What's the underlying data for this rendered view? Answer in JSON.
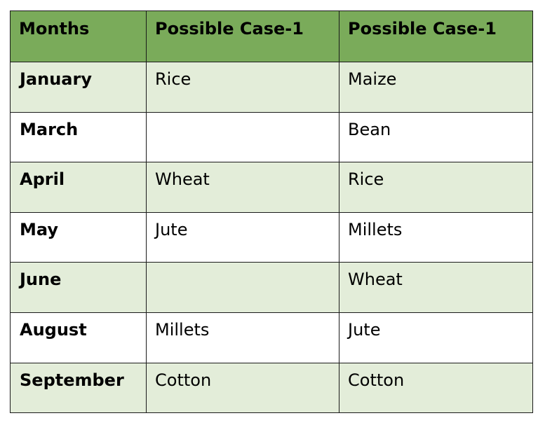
{
  "table": {
    "headers": [
      "Months",
      "Possible Case-1",
      "Possible Case-1"
    ],
    "rows": [
      {
        "month": "January",
        "case1": "Rice",
        "case2": "Maize"
      },
      {
        "month": "March",
        "case1": "",
        "case2": "Bean"
      },
      {
        "month": "April",
        "case1": "Wheat",
        "case2": "Rice"
      },
      {
        "month": "May",
        "case1": "Jute",
        "case2": "Millets"
      },
      {
        "month": "June",
        "case1": "",
        "case2": "Wheat"
      },
      {
        "month": "August",
        "case1": "Millets",
        "case2": "Jute"
      },
      {
        "month": "September",
        "case1": "Cotton",
        "case2": "Cotton"
      }
    ]
  },
  "colors": {
    "header_background": "#7aab5a",
    "shaded_row_background": "#e3edd9",
    "plain_row_background": "#ffffff",
    "border": "#1a1a1a"
  }
}
